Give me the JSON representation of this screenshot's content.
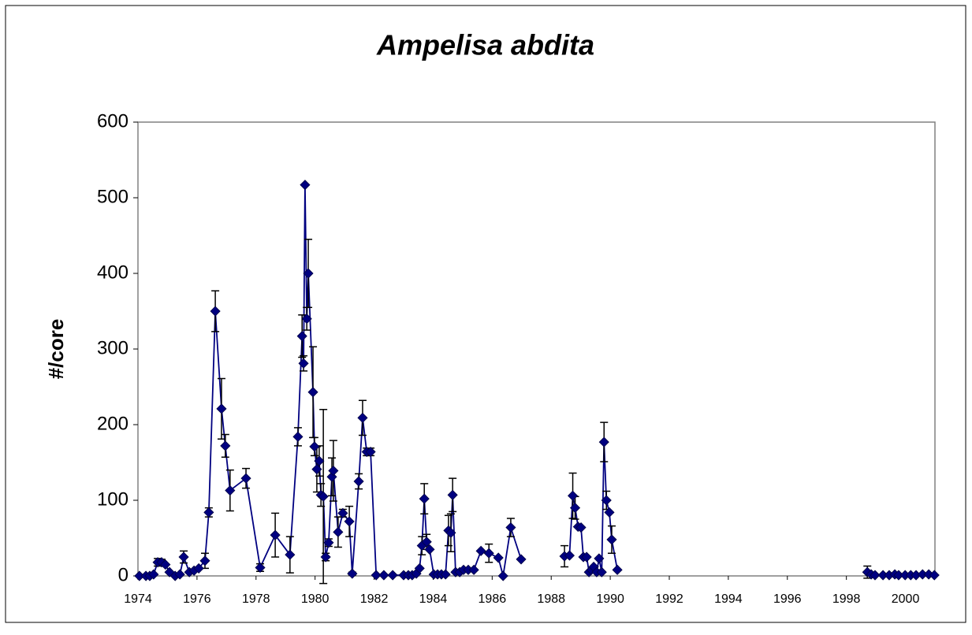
{
  "chart_data": {
    "type": "line",
    "title": "Ampelisa abdita",
    "y_label": "#/core",
    "xlim": [
      1974,
      2001
    ],
    "xticks": [
      1974,
      1976,
      1978,
      1980,
      1982,
      1984,
      1986,
      1988,
      1990,
      1992,
      1994,
      1996,
      1998,
      2000
    ],
    "ylim": [
      0,
      600
    ],
    "yticks": [
      0,
      100,
      200,
      300,
      400,
      500,
      600
    ],
    "x": [
      1974.05,
      1974.27,
      1974.4,
      1974.53,
      1974.67,
      1974.8,
      1974.93,
      1975.07,
      1975.26,
      1975.42,
      1975.55,
      1975.74,
      1975.9,
      1976.06,
      1976.27,
      1976.4,
      1976.62,
      1976.83,
      1976.96,
      1977.12,
      1977.66,
      1978.14,
      1978.65,
      1979.15,
      1979.42,
      1979.56,
      1979.61,
      1979.66,
      1979.72,
      1979.77,
      1979.93,
      1979.98,
      1980.06,
      1980.14,
      1980.2,
      1980.28,
      1980.36,
      1980.46,
      1980.57,
      1980.62,
      1980.78,
      1980.94,
      1981.16,
      1981.26,
      1981.48,
      1981.61,
      1981.75,
      1981.88,
      1982.07,
      1982.33,
      1982.63,
      1983.0,
      1983.16,
      1983.29,
      1983.43,
      1983.54,
      1983.62,
      1983.7,
      1983.78,
      1983.88,
      1984.02,
      1984.15,
      1984.28,
      1984.42,
      1984.52,
      1984.6,
      1984.66,
      1984.76,
      1984.9,
      1985.03,
      1985.19,
      1985.38,
      1985.62,
      1985.89,
      1986.21,
      1986.37,
      1986.63,
      1986.98,
      1987.7,
      1988.45,
      1988.62,
      1988.73,
      1988.81,
      1988.91,
      1989.01,
      1989.09,
      1989.2,
      1989.28,
      1989.36,
      1989.44,
      1989.54,
      1989.62,
      1989.71,
      1989.79,
      1989.87,
      1989.97,
      1990.05,
      1990.24,
      1994,
      1998.71,
      1998.84,
      1998.97,
      1999.24,
      1999.45,
      1999.64,
      1999.77,
      1999.99,
      2000.18,
      2000.36,
      2000.58,
      2000.79,
      2000.98
    ],
    "series": [
      {
        "color": "#000080",
        "values": [
          0,
          0,
          0,
          2,
          18,
          18,
          15,
          5,
          0,
          2,
          25,
          5,
          7,
          10,
          20,
          84,
          350,
          221,
          172,
          113,
          129,
          11,
          54,
          28,
          184,
          317,
          281,
          517,
          340,
          400,
          243,
          171,
          141,
          152,
          107,
          105,
          25,
          44,
          131,
          139,
          58,
          83,
          72,
          3,
          125,
          209,
          164,
          164,
          1,
          1,
          1,
          1,
          1,
          1,
          3,
          10,
          40,
          102,
          45,
          35,
          2,
          2,
          2,
          2,
          60,
          57,
          107,
          5,
          5,
          8,
          8,
          8,
          33,
          30,
          24,
          0,
          64,
          22,
          null,
          26,
          27,
          106,
          90,
          65,
          64,
          25,
          25,
          5,
          8,
          12,
          5,
          23,
          5,
          177,
          100,
          84,
          48,
          8,
          null,
          5,
          2,
          1,
          1,
          1,
          2,
          1,
          1,
          1,
          1,
          2,
          2,
          1
        ],
        "errors": [
          null,
          null,
          null,
          null,
          5,
          4,
          null,
          null,
          null,
          null,
          8,
          null,
          null,
          null,
          10,
          6,
          27,
          40,
          15,
          27,
          13,
          5,
          29,
          24,
          12,
          28,
          10,
          null,
          15,
          45,
          60,
          12,
          30,
          20,
          15,
          115,
          5,
          5,
          25,
          40,
          20,
          5,
          20,
          2,
          10,
          23,
          5,
          5,
          null,
          null,
          null,
          null,
          null,
          null,
          null,
          null,
          12,
          20,
          10,
          null,
          null,
          null,
          null,
          null,
          20,
          25,
          22,
          null,
          null,
          null,
          null,
          null,
          null,
          12,
          null,
          null,
          12,
          null,
          null,
          14,
          null,
          30,
          15,
          null,
          null,
          null,
          null,
          null,
          null,
          null,
          null,
          null,
          null,
          26,
          12,
          null,
          18,
          null,
          null,
          8,
          null,
          null,
          null,
          null,
          null,
          null,
          null,
          null,
          null,
          null,
          null,
          null
        ]
      }
    ]
  }
}
